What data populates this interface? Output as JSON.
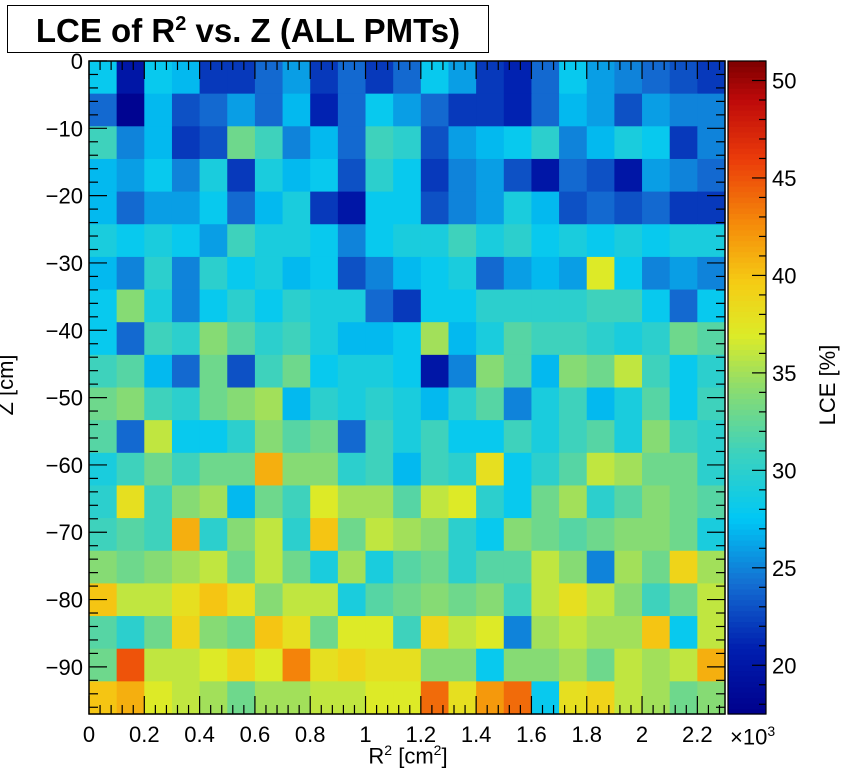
{
  "chart_data": {
    "type": "heatmap",
    "title": "LCE of R² vs. Z (ALL PMTs)",
    "title_main": "LCE of R",
    "title_sup": "2",
    "title_rest": " vs. Z (ALL PMTs)",
    "xlabel_main": "R",
    "xlabel_sup": "2",
    "xlabel_rest": " [cm",
    "xlabel_sup2": "2",
    "xlabel_end": "]",
    "x_exponent_main": "×10",
    "x_exponent_sup": "3",
    "ylabel": "Z [cm]",
    "zlabel": "LCE [%]",
    "xlim": [
      0,
      2.3
    ],
    "ylim": [
      -97,
      0
    ],
    "zlim": [
      17.5,
      51
    ],
    "x_ticks": [
      "0",
      "0.2",
      "0.4",
      "0.6",
      "0.8",
      "1",
      "1.2",
      "1.4",
      "1.6",
      "1.8",
      "2",
      "2.2"
    ],
    "y_ticks": [
      "0",
      "−10",
      "−20",
      "−30",
      "−40",
      "−50",
      "−60",
      "−70",
      "−80",
      "−90"
    ],
    "z_ticks": [
      "20",
      "25",
      "30",
      "35",
      "40",
      "45",
      "50"
    ],
    "x_bins": 23,
    "y_bins": 20,
    "x_bin_width": 0.1,
    "z_bin_height": 4.85,
    "values": [
      [
        28,
        20,
        28,
        27,
        22,
        22,
        24,
        26,
        22,
        24,
        22,
        24,
        28,
        26,
        22,
        21,
        24,
        28,
        26,
        25,
        24,
        23,
        22
      ],
      [
        24,
        18,
        27,
        23,
        24,
        26,
        24,
        27,
        21,
        24,
        28,
        26,
        24,
        22,
        22,
        21,
        24,
        27,
        26,
        23,
        26,
        25,
        25
      ],
      [
        31,
        25,
        27,
        22,
        23,
        33,
        31,
        25,
        27,
        24,
        31,
        30,
        23,
        26,
        27,
        28,
        30,
        25,
        27,
        29,
        28,
        22,
        25
      ],
      [
        27,
        26,
        28,
        25,
        29,
        22,
        29,
        27,
        28,
        23,
        30,
        28,
        22,
        25,
        26,
        23,
        20,
        24,
        23,
        20,
        26,
        25,
        24
      ],
      [
        27,
        24,
        26,
        26,
        28,
        24,
        27,
        29,
        22,
        20,
        28,
        28,
        23,
        25,
        26,
        29,
        27,
        23,
        24,
        23,
        24,
        22,
        22
      ],
      [
        29,
        28,
        29,
        28,
        26,
        31,
        29,
        29,
        28,
        25,
        28,
        29,
        29,
        31,
        29,
        30,
        28,
        29,
        28,
        29,
        28,
        29,
        29
      ],
      [
        27,
        25,
        30,
        25,
        30,
        28,
        29,
        27,
        28,
        23,
        25,
        27,
        28,
        29,
        24,
        26,
        27,
        26,
        37,
        28,
        25,
        26,
        25
      ],
      [
        28,
        34,
        29,
        25,
        28,
        30,
        28,
        30,
        29,
        29,
        24,
        22,
        28,
        28,
        30,
        30,
        30,
        30,
        31,
        31,
        28,
        24,
        28
      ],
      [
        28,
        24,
        31,
        30,
        34,
        32,
        30,
        31,
        29,
        27,
        27,
        28,
        35,
        27,
        29,
        32,
        31,
        31,
        30,
        29,
        30,
        33,
        32
      ],
      [
        31,
        32,
        27,
        24,
        33,
        23,
        31,
        33,
        28,
        29,
        29,
        28,
        20,
        25,
        34,
        32,
        27,
        34,
        33,
        36,
        31,
        28,
        30
      ],
      [
        33,
        34,
        31,
        30,
        33,
        34,
        35,
        27,
        30,
        29,
        30,
        29,
        27,
        30,
        32,
        25,
        29,
        31,
        27,
        29,
        32,
        28,
        31
      ],
      [
        32,
        24,
        36,
        28,
        28,
        30,
        34,
        32,
        33,
        24,
        31,
        29,
        31,
        28,
        28,
        31,
        29,
        31,
        32,
        29,
        34,
        31,
        30
      ],
      [
        29,
        31,
        33,
        31,
        33,
        33,
        41,
        34,
        34,
        30,
        31,
        27,
        31,
        30,
        38,
        28,
        30,
        32,
        36,
        35,
        33,
        33,
        30
      ],
      [
        30,
        38,
        31,
        34,
        35,
        27,
        33,
        31,
        37,
        35,
        35,
        32,
        36,
        37,
        30,
        28,
        33,
        35,
        30,
        32,
        34,
        33,
        32
      ],
      [
        31,
        32,
        31,
        41,
        30,
        34,
        36,
        30,
        40,
        33,
        36,
        35,
        34,
        30,
        28,
        34,
        33,
        32,
        33,
        34,
        34,
        33,
        29
      ],
      [
        34,
        33,
        34,
        35,
        36,
        33,
        36,
        33,
        29,
        35,
        29,
        32,
        33,
        30,
        32,
        32,
        36,
        34,
        25,
        35,
        33,
        39,
        35
      ],
      [
        40,
        36,
        36,
        38,
        40,
        38,
        34,
        36,
        36,
        29,
        32,
        33,
        34,
        33,
        34,
        31,
        36,
        38,
        36,
        34,
        31,
        33,
        36
      ],
      [
        32,
        30,
        33,
        39,
        34,
        33,
        40,
        38,
        33,
        37,
        37,
        31,
        39,
        36,
        37,
        25,
        35,
        36,
        35,
        35,
        40,
        28,
        36
      ],
      [
        33,
        45,
        36,
        36,
        37,
        39,
        37,
        43,
        38,
        39,
        38,
        38,
        34,
        34,
        28,
        34,
        34,
        35,
        33,
        36,
        35,
        36,
        41
      ],
      [
        40,
        41,
        37,
        36,
        35,
        33,
        35,
        35,
        36,
        36,
        37,
        37,
        44,
        38,
        42,
        44,
        28,
        38,
        39,
        36,
        35,
        33,
        34
      ]
    ]
  }
}
